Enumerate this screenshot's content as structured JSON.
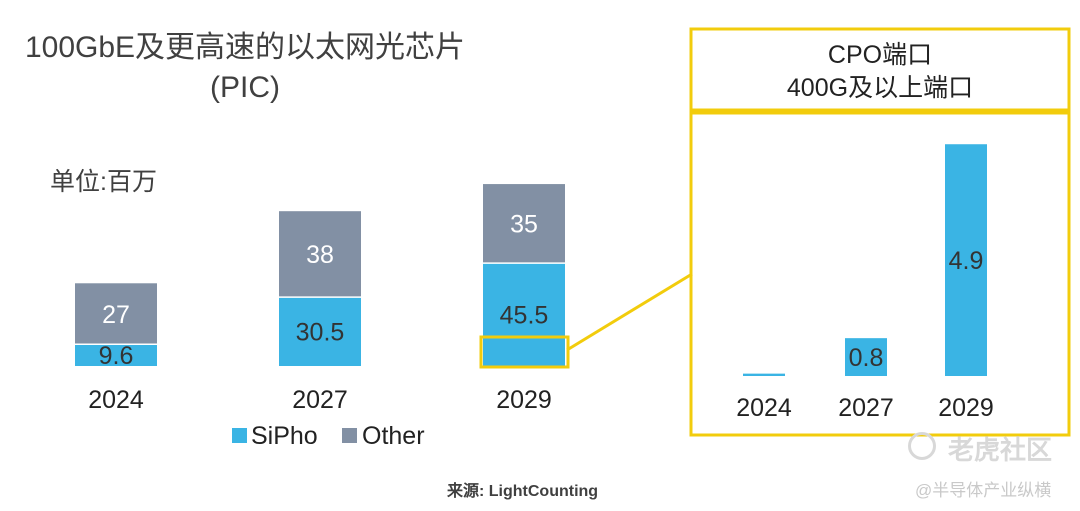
{
  "chart_data": [
    {
      "type": "bar",
      "stacked": true,
      "title_line1": "100GbE及更高速的以太网光芯片",
      "title_line2": "(PIC)",
      "unit_label": "单位:百万",
      "categories": [
        "2024",
        "2027",
        "2029"
      ],
      "series": [
        {
          "name": "SiPho",
          "values": [
            9.6,
            30.5,
            45.5
          ],
          "color": "#3ab4e4"
        },
        {
          "name": "Other",
          "values": [
            27,
            38,
            35
          ],
          "color": "#8290a4"
        }
      ],
      "value_labels": {
        "SiPho": [
          "9.6",
          "30.5",
          "45.5"
        ],
        "Other": [
          "27",
          "38",
          "35"
        ]
      },
      "legend_position": "bottom"
    },
    {
      "type": "bar",
      "title_line1": "CPO端口",
      "title_line2": "400G及以上端口",
      "categories": [
        "2024",
        "2027",
        "2029"
      ],
      "values": [
        0.05,
        0.8,
        4.9
      ],
      "value_labels": [
        "",
        "0.8",
        "4.9"
      ],
      "color": "#3ab4e4",
      "border_color": "#f2cc0c"
    }
  ],
  "source": "来源: LightCounting",
  "watermark": {
    "line1": "老虎社区",
    "line2": "@半导体产业纵横"
  }
}
